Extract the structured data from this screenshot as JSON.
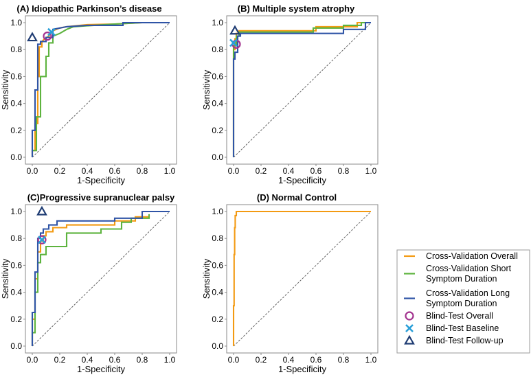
{
  "colors": {
    "overall": "#F39A12",
    "short": "#5DB33E",
    "long": "#2F54A6",
    "blind_overall": "#A3338F",
    "blind_baseline": "#2A9FD8",
    "blind_followup": "#1F3C73",
    "diagonal": "#555555",
    "frame": "#888888"
  },
  "legend": {
    "items": [
      {
        "key": "overall",
        "line1": "Cross-Validation Overall",
        "line2": "",
        "kind": "line"
      },
      {
        "key": "short",
        "line1": "Cross-Validation Short",
        "line2": "Symptom Duration",
        "kind": "line"
      },
      {
        "key": "long",
        "line1": "Cross-Validation Long",
        "line2": "Symptom Duration",
        "kind": "line"
      },
      {
        "key": "blind_overall",
        "line1": "Blind-Test Overall",
        "line2": "",
        "kind": "circle"
      },
      {
        "key": "blind_baseline",
        "line1": "Blind-Test Baseline",
        "line2": "",
        "kind": "cross"
      },
      {
        "key": "blind_followup",
        "line1": "Blind-Test Follow-up",
        "line2": "",
        "kind": "triangle"
      }
    ]
  },
  "chart_data": [
    {
      "type": "line",
      "title": "(A) Idiopathic Parkinson’s disease",
      "xlabel": "1-Specificity",
      "ylabel": "Sensitivity",
      "xlim": [
        0,
        1
      ],
      "ylim": [
        0,
        1
      ],
      "ticks": [
        "0.0",
        "0.2",
        "0.4",
        "0.6",
        "0.8",
        "1.0"
      ],
      "series": [
        {
          "name": "Cross-Validation Overall",
          "key": "overall",
          "x": [
            0,
            0,
            0.02,
            0.02,
            0.04,
            0.04,
            0.05,
            0.05,
            0.07,
            0.07,
            0.09,
            0.12,
            0.15,
            0.2,
            0.25,
            0.4,
            0.6,
            0.8,
            1.0
          ],
          "y": [
            0,
            0.05,
            0.05,
            0.25,
            0.25,
            0.6,
            0.6,
            0.82,
            0.82,
            0.86,
            0.88,
            0.9,
            0.94,
            0.96,
            0.97,
            0.985,
            0.99,
            1.0,
            1.0
          ]
        },
        {
          "name": "Cross-Validation Short Symptom Duration",
          "key": "short",
          "x": [
            0,
            0,
            0.03,
            0.03,
            0.06,
            0.06,
            0.1,
            0.1,
            0.12,
            0.12,
            0.15,
            0.15,
            0.2,
            0.25,
            0.3,
            0.45,
            0.6,
            0.8,
            1.0
          ],
          "y": [
            0,
            0.05,
            0.05,
            0.3,
            0.3,
            0.6,
            0.6,
            0.75,
            0.75,
            0.85,
            0.85,
            0.9,
            0.92,
            0.95,
            0.97,
            0.98,
            0.99,
            1.0,
            1.0
          ]
        },
        {
          "name": "Cross-Validation Long Symptom Duration",
          "key": "long",
          "x": [
            0,
            0,
            0.02,
            0.02,
            0.04,
            0.04,
            0.06,
            0.06,
            0.1,
            0.1,
            0.15,
            0.15,
            0.25,
            0.4,
            0.66,
            0.66,
            1.0
          ],
          "y": [
            0,
            0.2,
            0.2,
            0.5,
            0.5,
            0.84,
            0.84,
            0.86,
            0.86,
            0.89,
            0.89,
            0.95,
            0.97,
            0.98,
            0.98,
            1.0,
            1.0
          ]
        }
      ],
      "points": [
        {
          "key": "blind_overall",
          "marker": "circle",
          "x": 0.11,
          "y": 0.9
        },
        {
          "key": "blind_baseline",
          "marker": "cross",
          "x": 0.14,
          "y": 0.93
        },
        {
          "key": "blind_followup",
          "marker": "triangle",
          "x": 0.0,
          "y": 0.89
        }
      ]
    },
    {
      "type": "line",
      "title": "(B) Multiple system atrophy",
      "xlabel": "1-Specificity",
      "ylabel": "Sensitivity",
      "xlim": [
        0,
        1
      ],
      "ylim": [
        0,
        1
      ],
      "ticks": [
        "0.0",
        "0.2",
        "0.4",
        "0.6",
        "0.8",
        "1.0"
      ],
      "series": [
        {
          "name": "Cross-Validation Overall",
          "key": "overall",
          "x": [
            0,
            0,
            0.01,
            0.01,
            0.02,
            0.02,
            0.04,
            0.04,
            0.6,
            0.6,
            0.9,
            0.9,
            1.0
          ],
          "y": [
            0,
            0.8,
            0.8,
            0.88,
            0.88,
            0.92,
            0.92,
            0.94,
            0.94,
            0.97,
            0.97,
            1.0,
            1.0
          ]
        },
        {
          "name": "Cross-Validation Short Symptom Duration",
          "key": "short",
          "x": [
            0,
            0,
            0.02,
            0.02,
            0.04,
            0.04,
            0.58,
            0.58,
            0.8,
            0.8,
            0.93,
            0.93,
            1.0
          ],
          "y": [
            0,
            0.83,
            0.83,
            0.9,
            0.9,
            0.93,
            0.93,
            0.96,
            0.96,
            0.98,
            0.98,
            1.0,
            1.0
          ]
        },
        {
          "name": "Cross-Validation Long Symptom Duration",
          "key": "long",
          "x": [
            0,
            0,
            0.01,
            0.01,
            0.03,
            0.03,
            0.05,
            0.05,
            0.8,
            0.8,
            0.96,
            0.96,
            1.0
          ],
          "y": [
            0,
            0.73,
            0.73,
            0.78,
            0.78,
            0.9,
            0.9,
            0.92,
            0.92,
            0.95,
            0.95,
            1.0,
            1.0
          ]
        }
      ],
      "points": [
        {
          "key": "blind_overall",
          "marker": "circle",
          "x": 0.02,
          "y": 0.84
        },
        {
          "key": "blind_baseline",
          "marker": "cross",
          "x": 0.0,
          "y": 0.85
        },
        {
          "key": "blind_followup",
          "marker": "triangle",
          "x": 0.01,
          "y": 0.94
        }
      ]
    },
    {
      "type": "line",
      "title": "(C)Progressive supranuclear palsy",
      "xlabel": "1-Specificity",
      "ylabel": "Sensitivity",
      "xlim": [
        0,
        1
      ],
      "ylim": [
        0,
        1
      ],
      "ticks": [
        "0.0",
        "0.2",
        "0.4",
        "0.6",
        "0.8",
        "1.0"
      ],
      "series": [
        {
          "name": "Cross-Validation Overall",
          "key": "overall",
          "x": [
            0,
            0,
            0.02,
            0.02,
            0.04,
            0.04,
            0.06,
            0.06,
            0.08,
            0.08,
            0.1,
            0.1,
            0.15,
            0.15,
            0.25,
            0.25,
            0.6,
            0.6,
            0.75,
            0.75,
            0.85,
            0.85
          ],
          "y": [
            0,
            0.2,
            0.2,
            0.5,
            0.5,
            0.7,
            0.7,
            0.78,
            0.78,
            0.82,
            0.82,
            0.85,
            0.85,
            0.88,
            0.88,
            0.9,
            0.9,
            0.93,
            0.93,
            0.96,
            0.96,
            0.97
          ]
        },
        {
          "name": "Cross-Validation Short Symptom Duration",
          "key": "short",
          "x": [
            0,
            0,
            0.02,
            0.02,
            0.04,
            0.04,
            0.06,
            0.06,
            0.1,
            0.1,
            0.25,
            0.25,
            0.5,
            0.5,
            0.65,
            0.65,
            0.72,
            0.72,
            0.85,
            0.85
          ],
          "y": [
            0,
            0.1,
            0.1,
            0.4,
            0.4,
            0.62,
            0.62,
            0.68,
            0.68,
            0.74,
            0.74,
            0.84,
            0.84,
            0.87,
            0.87,
            0.92,
            0.92,
            0.95,
            0.95,
            0.98
          ]
        },
        {
          "name": "Cross-Validation Long Symptom Duration",
          "key": "long",
          "x": [
            0,
            0,
            0.02,
            0.02,
            0.04,
            0.04,
            0.06,
            0.06,
            0.08,
            0.08,
            0.12,
            0.12,
            0.18,
            0.18,
            0.6,
            0.6,
            0.8,
            0.8,
            1.0
          ],
          "y": [
            0,
            0.25,
            0.25,
            0.55,
            0.55,
            0.8,
            0.8,
            0.84,
            0.84,
            0.87,
            0.87,
            0.9,
            0.9,
            0.93,
            0.93,
            0.95,
            0.95,
            1.0,
            1.0
          ]
        }
      ],
      "points": [
        {
          "key": "blind_overall",
          "marker": "circle",
          "x": 0.07,
          "y": 0.79
        },
        {
          "key": "blind_baseline",
          "marker": "cross",
          "x": 0.07,
          "y": 0.79
        },
        {
          "key": "blind_followup",
          "marker": "triangle",
          "x": 0.07,
          "y": 1.0
        }
      ]
    },
    {
      "type": "line",
      "title": "(D) Normal Control",
      "xlabel": "1-Specificity",
      "ylabel": "Sensitivity",
      "xlim": [
        0,
        1
      ],
      "ylim": [
        0,
        1
      ],
      "ticks": [
        "0.0",
        "0.2",
        "0.4",
        "0.6",
        "0.8",
        "1.0"
      ],
      "series": [
        {
          "name": "Cross-Validation Overall",
          "key": "overall",
          "x": [
            0,
            0,
            0.004,
            0.004,
            0.008,
            0.008,
            0.012,
            0.012,
            0.02,
            0.02,
            1.0
          ],
          "y": [
            0,
            0.3,
            0.3,
            0.68,
            0.68,
            0.88,
            0.88,
            0.97,
            0.97,
            1.0,
            1.0
          ]
        }
      ],
      "points": []
    }
  ]
}
